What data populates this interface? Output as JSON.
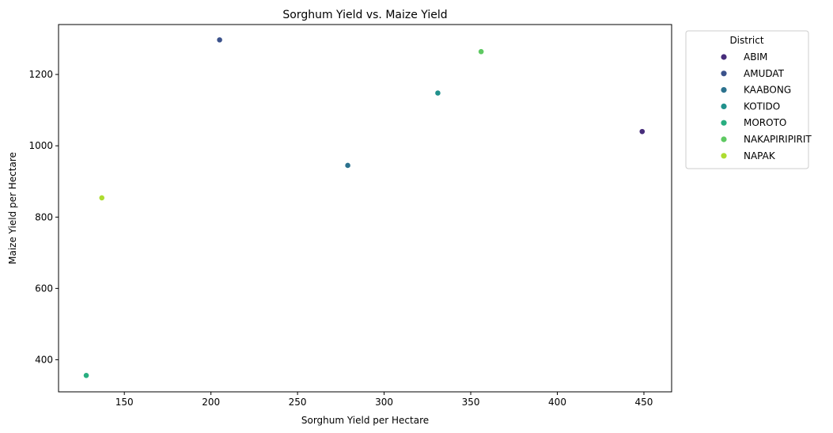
{
  "chart_data": {
    "type": "scatter",
    "title": "Sorghum Yield vs. Maize Yield",
    "xlabel": "Sorghum Yield per Hectare",
    "ylabel": "Maize Yield per Hectare",
    "xlim": [
      112,
      466
    ],
    "ylim": [
      310,
      1340
    ],
    "xticks": [
      150,
      200,
      250,
      300,
      350,
      400,
      450
    ],
    "yticks": [
      400,
      600,
      800,
      1000,
      1200
    ],
    "grid": false,
    "legend": {
      "title": "District",
      "placement": "outside-top-right"
    },
    "points": [
      {
        "district": "ABIM",
        "x": 449,
        "y": 1040,
        "color": "#472d7b"
      },
      {
        "district": "AMUDAT",
        "x": 205,
        "y": 1297,
        "color": "#3b528b"
      },
      {
        "district": "KAABONG",
        "x": 279,
        "y": 945,
        "color": "#2c728e"
      },
      {
        "district": "KOTIDO",
        "x": 331,
        "y": 1148,
        "color": "#21918c"
      },
      {
        "district": "MOROTO",
        "x": 128,
        "y": 356,
        "color": "#28ae80"
      },
      {
        "district": "NAKAPIRIPIRIT",
        "x": 356,
        "y": 1264,
        "color": "#5ec962"
      },
      {
        "district": "NAPAK",
        "x": 137,
        "y": 854,
        "color": "#addc30"
      }
    ]
  }
}
